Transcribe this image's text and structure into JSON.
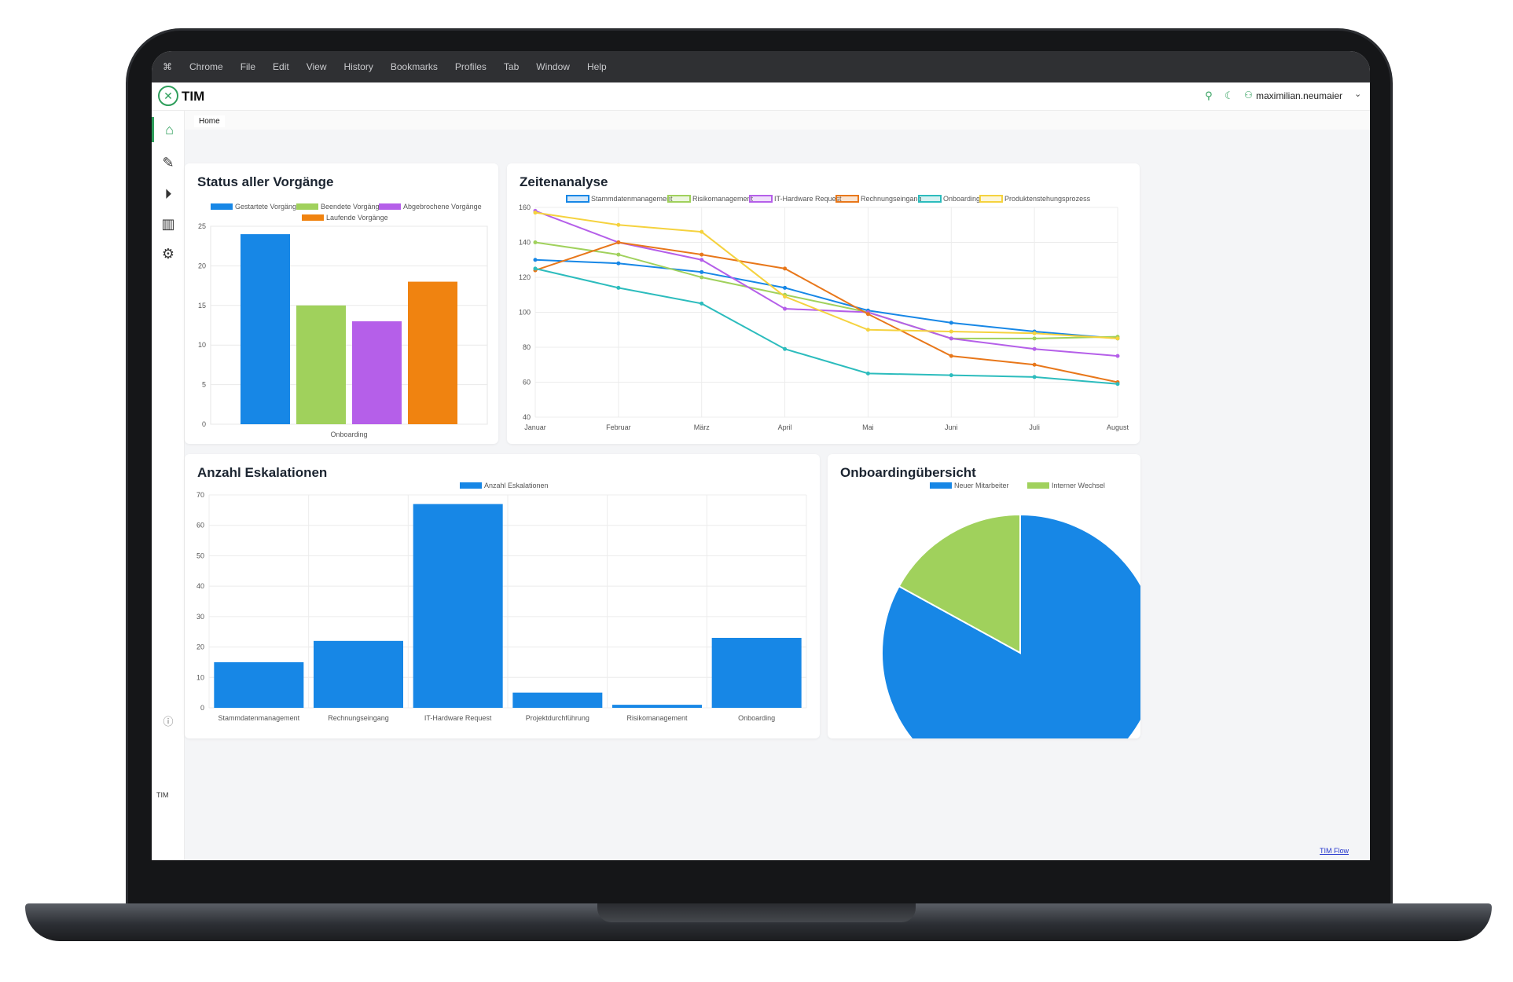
{
  "menubar": {
    "items": [
      "Chrome",
      "File",
      "Edit",
      "View",
      "History",
      "Bookmarks",
      "Profiles",
      "Tab",
      "Window",
      "Help"
    ]
  },
  "header": {
    "app_name": "TIM",
    "user": "maximilian.neumaier"
  },
  "breadcrumb": "Home",
  "footer_link": "TIM Flow",
  "colors": {
    "blue": "#1787e6",
    "green": "#a0d15c",
    "purple": "#b55fe9",
    "orange": "#f08310",
    "teal": "#2cbcbd",
    "yellow": "#f5d23e",
    "dark_orange": "#e8771a"
  },
  "chart_data": [
    {
      "id": "status",
      "type": "bar",
      "title": "Status aller Vorgänge",
      "categories": [
        "Onboarding"
      ],
      "series": [
        {
          "name": "Gestartete Vorgänge",
          "values": [
            24
          ]
        },
        {
          "name": "Beendete Vorgänge",
          "values": [
            15
          ]
        },
        {
          "name": "Abgebrochene Vorgänge",
          "values": [
            13
          ]
        },
        {
          "name": "Laufende Vorgänge",
          "values": [
            18
          ]
        }
      ],
      "ylim": [
        0,
        25
      ],
      "yticks": [
        0,
        5,
        10,
        15,
        20,
        25
      ],
      "legend": "top",
      "grid": true
    },
    {
      "id": "zeiten",
      "type": "line",
      "title": "Zeitenanalyse",
      "categories": [
        "Januar",
        "Februar",
        "März",
        "April",
        "Mai",
        "Juni",
        "Juli",
        "August"
      ],
      "series": [
        {
          "name": "Stammdatenmanagement",
          "values": [
            130,
            128,
            123,
            114,
            101,
            94,
            89,
            85
          ]
        },
        {
          "name": "Risikomanagement",
          "values": [
            140,
            133,
            120,
            110,
            100,
            85,
            85,
            86
          ]
        },
        {
          "name": "IT-Hardware Request",
          "values": [
            158,
            140,
            130,
            102,
            100,
            85,
            79,
            75
          ]
        },
        {
          "name": "Rechnungseingang",
          "values": [
            124,
            140,
            133,
            125,
            99,
            75,
            70,
            60
          ]
        },
        {
          "name": "Onboarding",
          "values": [
            125,
            114,
            105,
            79,
            65,
            64,
            63,
            59
          ]
        },
        {
          "name": "Produktenstehungsprozess",
          "values": [
            157,
            150,
            146,
            109,
            90,
            89,
            88,
            85
          ]
        }
      ],
      "ylim": [
        40,
        160
      ],
      "yticks": [
        40,
        60,
        80,
        100,
        120,
        140,
        160
      ],
      "legend": "top",
      "grid": true
    },
    {
      "id": "eskalationen",
      "type": "bar",
      "title": "Anzahl Eskalationen",
      "categories": [
        "Stammdatenmanagement",
        "Rechnungseingang",
        "IT-Hardware Request",
        "Projektdurchführung",
        "Risikomanagement",
        "Onboarding"
      ],
      "series": [
        {
          "name": "Anzahl Eskalationen",
          "values": [
            15,
            22,
            67,
            5,
            1,
            23
          ]
        }
      ],
      "ylim": [
        0,
        70
      ],
      "yticks": [
        0,
        10,
        20,
        30,
        40,
        50,
        60,
        70
      ],
      "legend": "top",
      "grid": true
    },
    {
      "id": "onboarding",
      "type": "pie",
      "title": "Onboardingübersicht",
      "series": [
        {
          "name": "Neuer Mitarbeiter",
          "values": [
            83
          ]
        },
        {
          "name": "Interner Wechsel",
          "values": [
            17
          ]
        }
      ],
      "legend": "top"
    }
  ]
}
